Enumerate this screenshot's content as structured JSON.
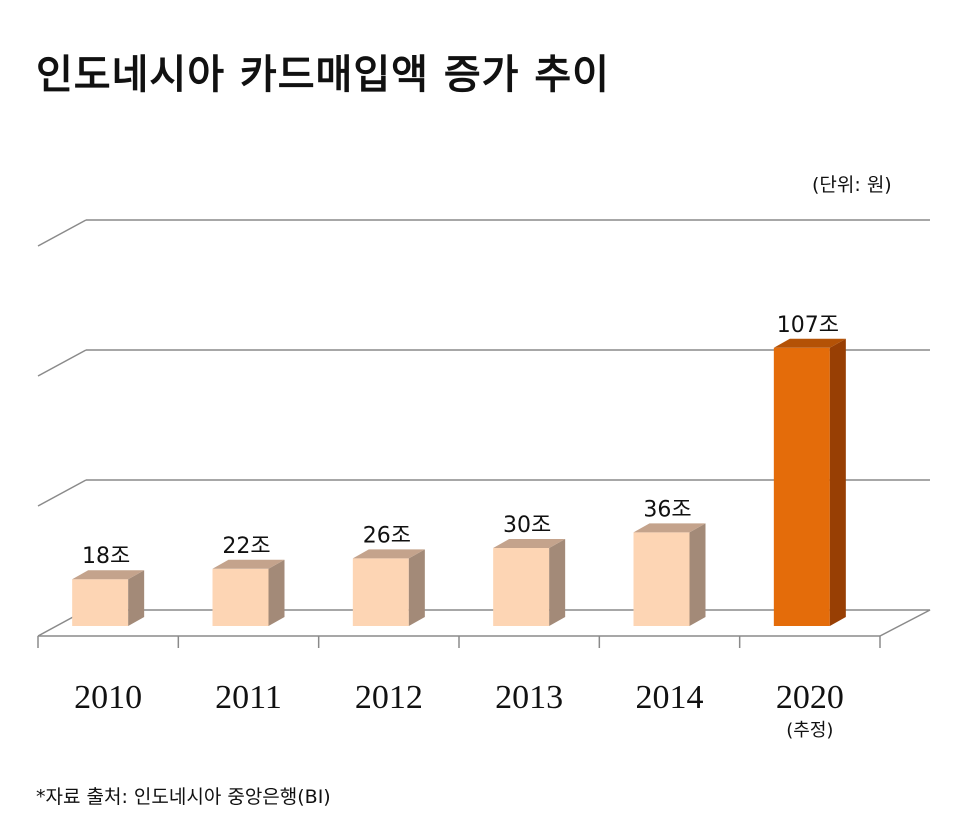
{
  "title": "인도네시아 카드매입액 증가 추이",
  "unit_label": "(단위: 원)",
  "source": "*자료 출처: 인도네시아 중앙은행(BI)",
  "colors": {
    "bar_front": "#fdd5b4",
    "bar_side": "#a38a78",
    "bar_top": "#c4a38c",
    "highlight_front": "#e46c0a",
    "highlight_side": "#983f04",
    "highlight_top": "#b45206",
    "grid": "#8a8a8a"
  },
  "chart_data": {
    "type": "bar",
    "title": "인도네시아 카드매입액 증가 추이",
    "categories": [
      "2010",
      "2011",
      "2012",
      "2013",
      "2014",
      "2020"
    ],
    "category_notes": [
      "",
      "",
      "",
      "",
      "",
      "(추정)"
    ],
    "values": [
      18,
      22,
      26,
      30,
      36,
      107
    ],
    "data_labels": [
      "18조",
      "22조",
      "26조",
      "30조",
      "36조",
      "107조"
    ],
    "highlight_index": 5,
    "ylim": [
      0,
      150
    ],
    "grid": true,
    "three_d": true
  }
}
